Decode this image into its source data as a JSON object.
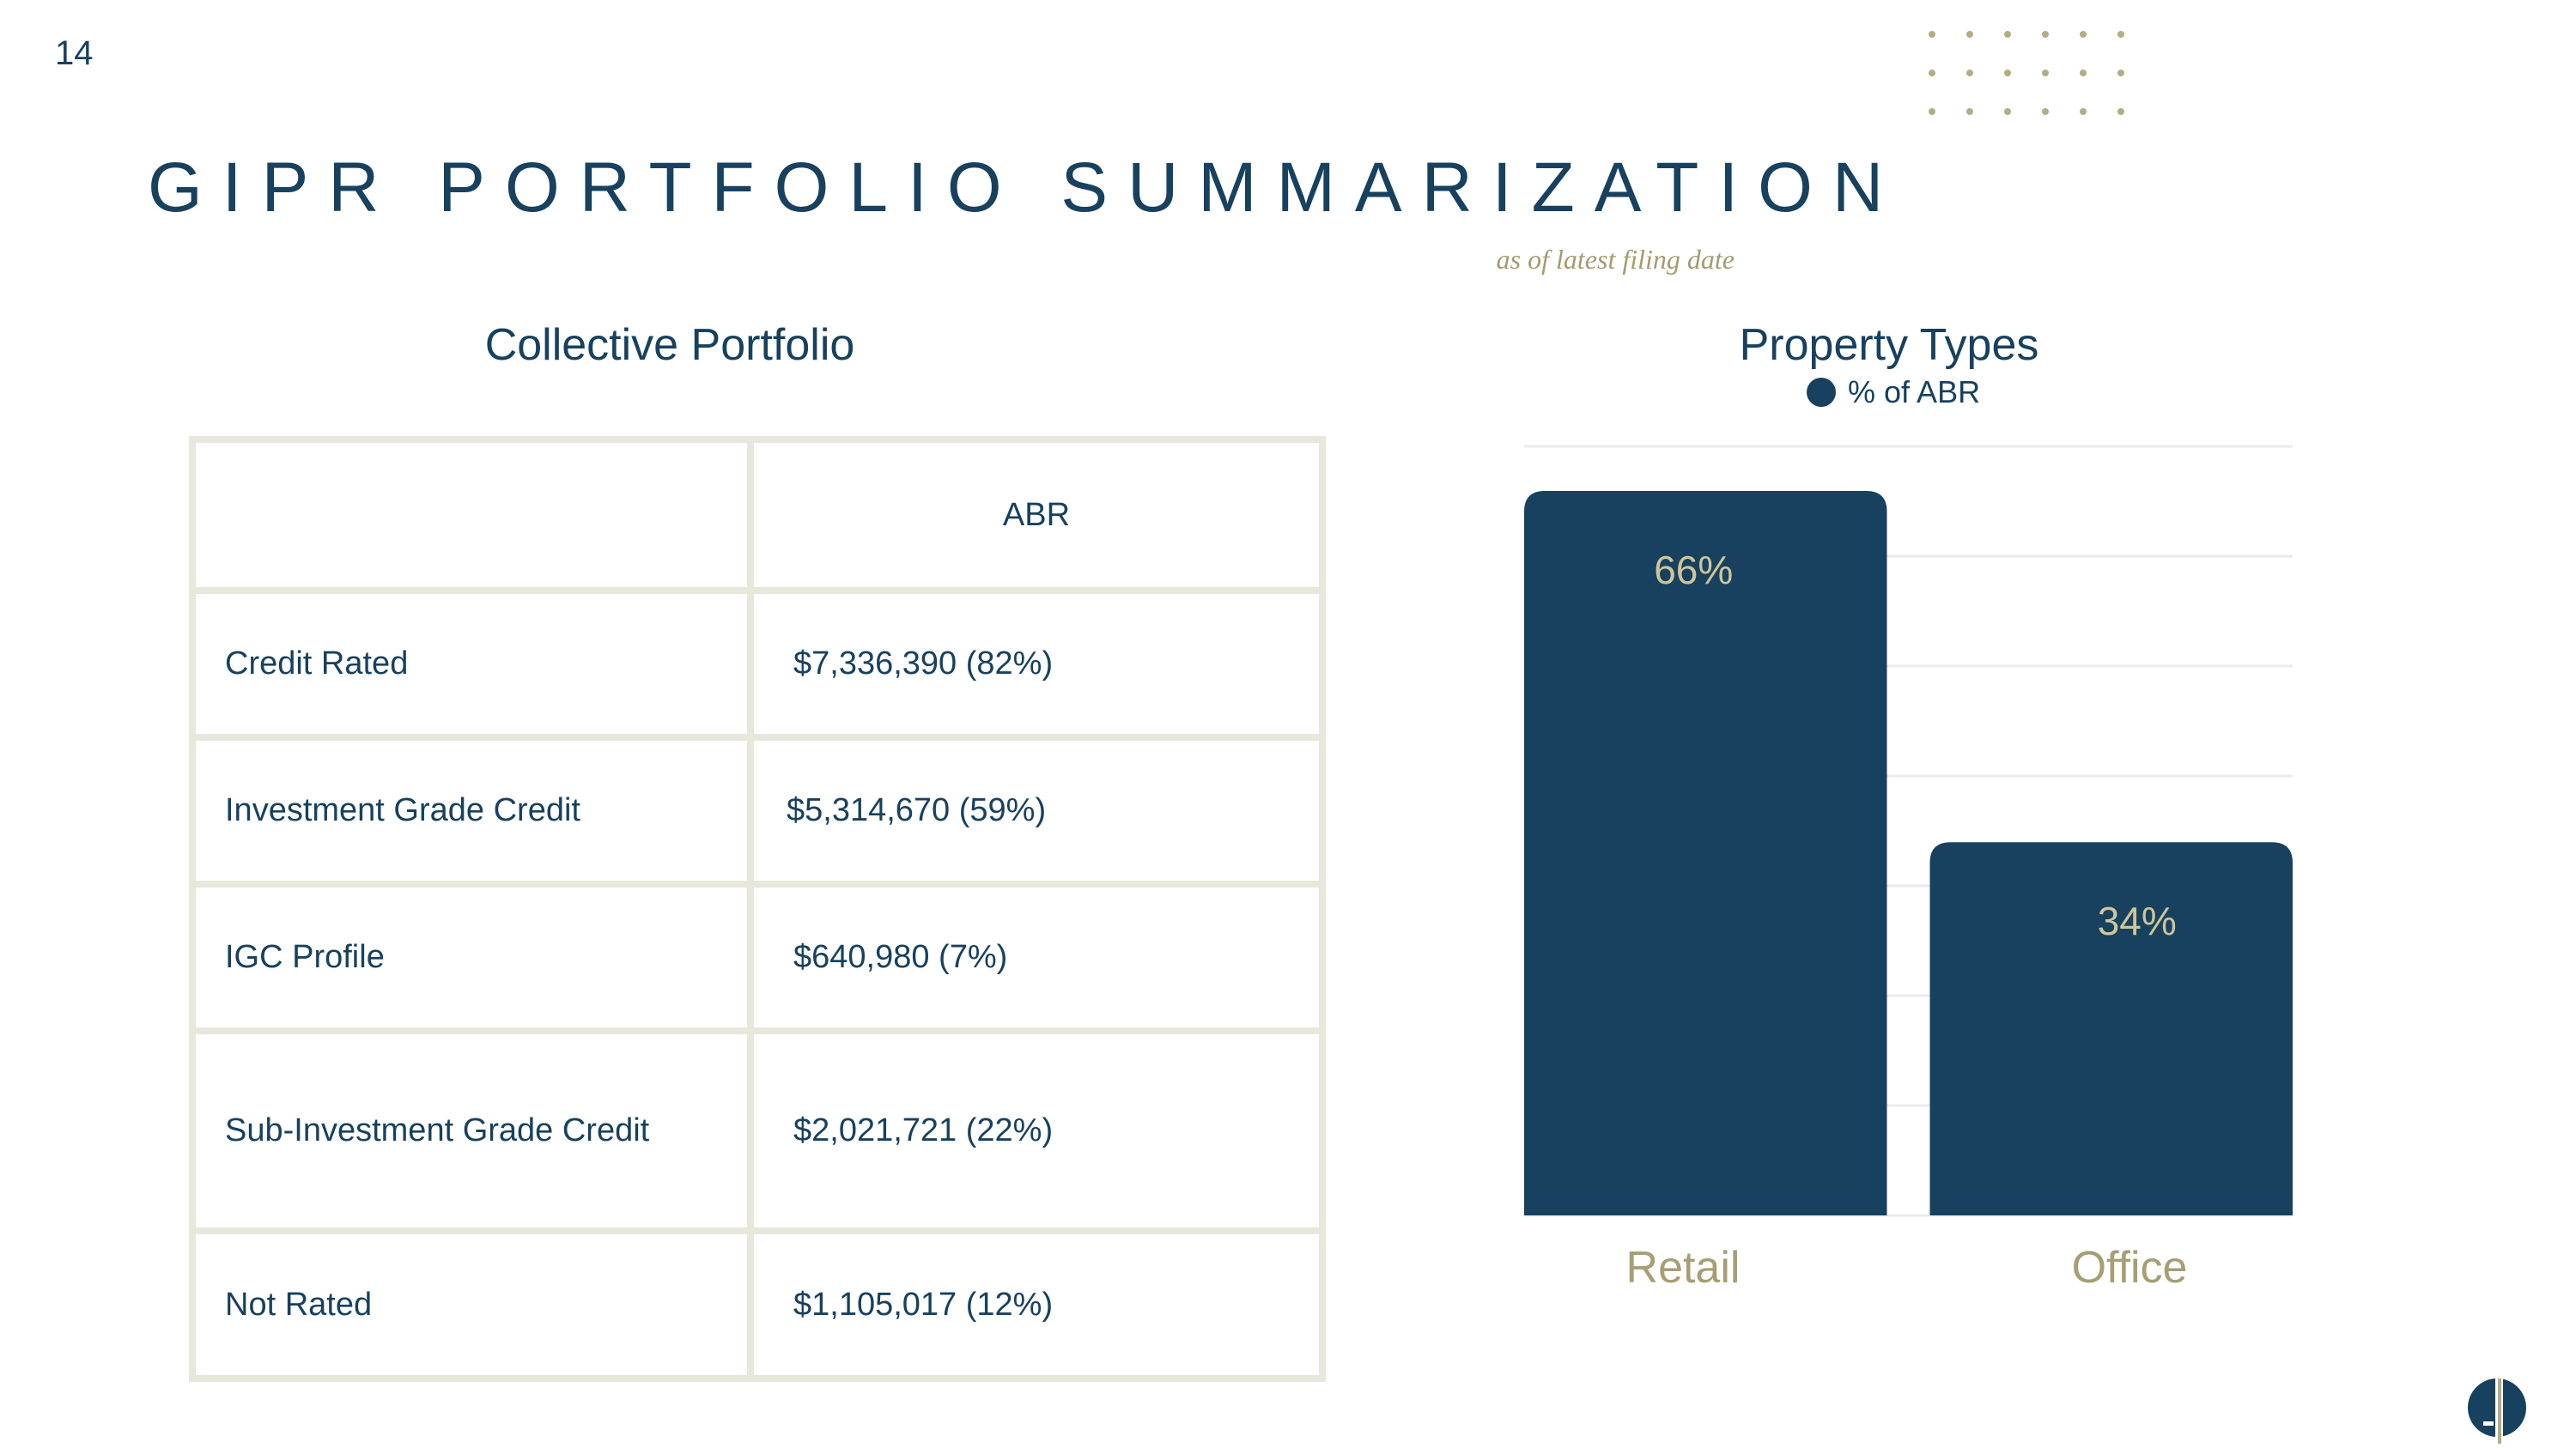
{
  "page": {
    "number": "14",
    "title": "GIPR PORTFOLIO SUMMARIZATION",
    "subtitle": "as of latest filing date"
  },
  "table": {
    "title": "Collective Portfolio",
    "columns": [
      "",
      "ABR"
    ],
    "rows": [
      {
        "label": "Credit Rated",
        "value": "$7,336,390 (82%)"
      },
      {
        "label": "Investment Grade Credit",
        "value": "$5,314,670 (59%)"
      },
      {
        "label": "IGC Profile",
        "value": "$640,980 (7%)"
      },
      {
        "label": "Sub-Investment Grade Credit",
        "value": "$2,021,721 (22%)"
      },
      {
        "label": "Not Rated",
        "value": "$1,105,017 (12%)"
      }
    ]
  },
  "chart_data": {
    "type": "bar",
    "title": "Property Types",
    "categories": [
      "Retail",
      "Office"
    ],
    "series": [
      {
        "name": "% of ABR",
        "values": [
          66,
          34
        ]
      }
    ],
    "data_labels": [
      "66%",
      "34%"
    ],
    "ylim": [
      0,
      66
    ],
    "grid": true,
    "legend": "top-center"
  },
  "colors": {
    "navy": "#17415f",
    "gold": "#a49b6f",
    "border": "#e8e7db",
    "bar_label": "#cfc59a",
    "category_label": "#a69e74"
  },
  "icons": {
    "decoration": "dot-grid-icon",
    "logo": "company-logo-icon"
  }
}
